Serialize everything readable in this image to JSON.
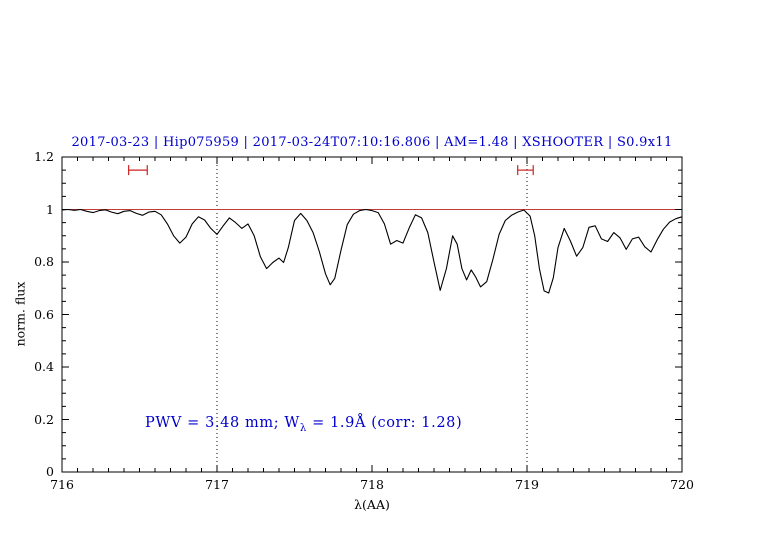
{
  "figure": {
    "title": "2017-03-23 | Hip075959 | 2017-03-24T07:10:16.806 | AM=1.48 | XSHOOTER | S0.9x11",
    "title_color": "#0000cc",
    "xlabel": "λ(AA)",
    "ylabel": "norm. flux",
    "annotation": {
      "part1": "PWV = 3.48 mm; W",
      "sub": "λ",
      "part2": " = 1.9Å (corr: 1.28)",
      "color": "#0000cc"
    }
  },
  "chart_data": {
    "type": "line",
    "title": "2017-03-23 | Hip075959 | 2017-03-24T07:10:16.806 | AM=1.48 | XSHOOTER | S0.9x11",
    "xlabel": "λ(AA)",
    "ylabel": "norm. flux",
    "xlim": [
      716,
      720
    ],
    "ylim": [
      0,
      1.2
    ],
    "x_ticks": [
      716,
      717,
      718,
      719,
      720
    ],
    "x_tick_labels": [
      "716",
      "717",
      "718",
      "719",
      "720"
    ],
    "y_ticks": [
      0,
      0.2,
      0.4,
      0.6,
      0.8,
      1,
      1.2
    ],
    "y_tick_labels": [
      "0",
      "0.2",
      "0.4",
      "0.6",
      "0.8",
      "1",
      "1.2"
    ],
    "x_minor_step": 0.1,
    "y_minor_step": 0.05,
    "grid": "off",
    "legend": "none",
    "vlines": [
      717,
      719
    ],
    "vline_style": "dotted black, full height",
    "continuum_line": {
      "y": 1.0,
      "color": "#c23b3b"
    },
    "range_markers": [
      {
        "x1": 716.43,
        "x2": 716.55,
        "y": 1.15,
        "color": "#cc2222"
      },
      {
        "x1": 718.94,
        "x2": 719.04,
        "y": 1.15,
        "color": "#cc2222"
      }
    ],
    "annotations": [
      "PWV = 3.48 mm; W_λ = 1.9Å (corr: 1.28)"
    ],
    "series": [
      {
        "name": "telluric absorption spectrum",
        "color": "#000000",
        "x": [
          716.0,
          716.04,
          716.08,
          716.12,
          716.16,
          716.2,
          716.24,
          716.28,
          716.32,
          716.36,
          716.4,
          716.44,
          716.48,
          716.52,
          716.56,
          716.6,
          716.64,
          716.68,
          716.72,
          716.76,
          716.8,
          716.84,
          716.88,
          716.92,
          716.96,
          717.0,
          717.04,
          717.08,
          717.12,
          717.16,
          717.2,
          717.24,
          717.28,
          717.32,
          717.36,
          717.4,
          717.43,
          717.46,
          717.5,
          717.54,
          717.58,
          717.62,
          717.66,
          717.7,
          717.73,
          717.76,
          717.8,
          717.84,
          717.88,
          717.92,
          717.96,
          718.0,
          718.04,
          718.08,
          718.12,
          718.16,
          718.2,
          718.24,
          718.28,
          718.32,
          718.36,
          718.4,
          718.44,
          718.48,
          718.52,
          718.55,
          718.58,
          718.61,
          718.64,
          718.67,
          718.7,
          718.74,
          718.78,
          718.82,
          718.86,
          718.9,
          718.94,
          718.98,
          719.02,
          719.05,
          719.08,
          719.11,
          719.14,
          719.17,
          719.2,
          719.24,
          719.28,
          719.32,
          719.36,
          719.4,
          719.44,
          719.48,
          719.52,
          719.56,
          719.6,
          719.64,
          719.68,
          719.72,
          719.76,
          719.8,
          719.84,
          719.88,
          719.92,
          719.96,
          720.0
        ],
        "y": [
          0.998,
          1.0,
          0.997,
          1.0,
          0.993,
          0.988,
          0.996,
          0.999,
          0.99,
          0.984,
          0.993,
          0.996,
          0.985,
          0.978,
          0.99,
          0.993,
          0.98,
          0.945,
          0.9,
          0.872,
          0.895,
          0.945,
          0.972,
          0.96,
          0.928,
          0.905,
          0.938,
          0.968,
          0.95,
          0.928,
          0.945,
          0.9,
          0.82,
          0.775,
          0.798,
          0.815,
          0.798,
          0.855,
          0.958,
          0.985,
          0.958,
          0.912,
          0.84,
          0.755,
          0.713,
          0.738,
          0.845,
          0.942,
          0.982,
          0.996,
          1.0,
          0.996,
          0.988,
          0.945,
          0.868,
          0.882,
          0.872,
          0.93,
          0.98,
          0.968,
          0.912,
          0.8,
          0.692,
          0.775,
          0.9,
          0.868,
          0.775,
          0.732,
          0.77,
          0.742,
          0.705,
          0.725,
          0.81,
          0.905,
          0.958,
          0.978,
          0.99,
          0.998,
          0.975,
          0.9,
          0.775,
          0.69,
          0.682,
          0.74,
          0.855,
          0.928,
          0.88,
          0.822,
          0.855,
          0.932,
          0.938,
          0.888,
          0.878,
          0.912,
          0.892,
          0.848,
          0.888,
          0.895,
          0.858,
          0.838,
          0.885,
          0.925,
          0.952,
          0.965,
          0.972
        ]
      }
    ]
  }
}
